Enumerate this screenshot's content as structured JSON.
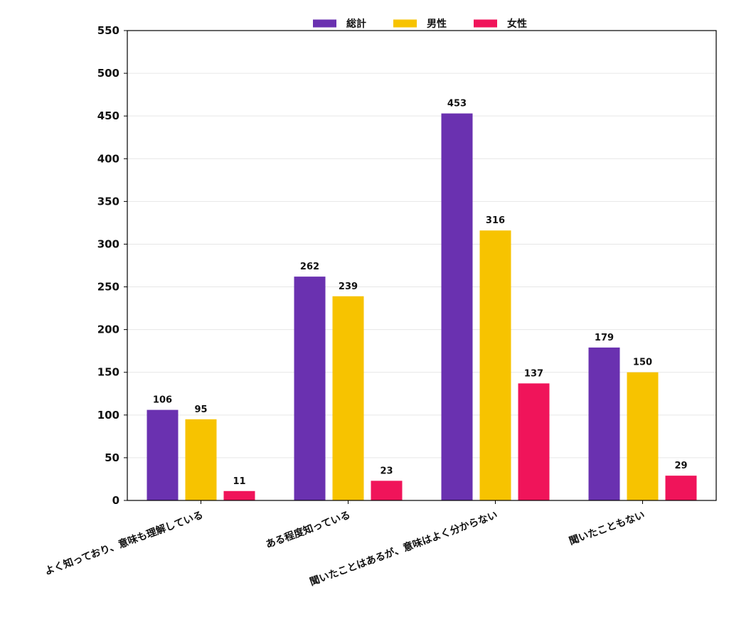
{
  "chart_data": {
    "type": "bar",
    "title": "",
    "xlabel": "",
    "ylabel": "",
    "categories": [
      "よく知っており、意味も理解している",
      "ある程度知っている",
      "聞いたことはあるが、意味はよく分からない",
      "聞いたこともない"
    ],
    "series": [
      {
        "name": "総計",
        "color": "#6a31b0",
        "values": [
          106,
          262,
          453,
          179
        ]
      },
      {
        "name": "男性",
        "color": "#f7c300",
        "values": [
          95,
          239,
          316,
          150
        ]
      },
      {
        "name": "女性",
        "color": "#f0145a",
        "values": [
          11,
          23,
          137,
          29
        ]
      }
    ],
    "ylim": [
      0,
      550
    ],
    "yticks": [
      0,
      50,
      100,
      150,
      200,
      250,
      300,
      350,
      400,
      450,
      500,
      550
    ],
    "grid": true,
    "legend_position": "top-center",
    "data_labels": true
  }
}
